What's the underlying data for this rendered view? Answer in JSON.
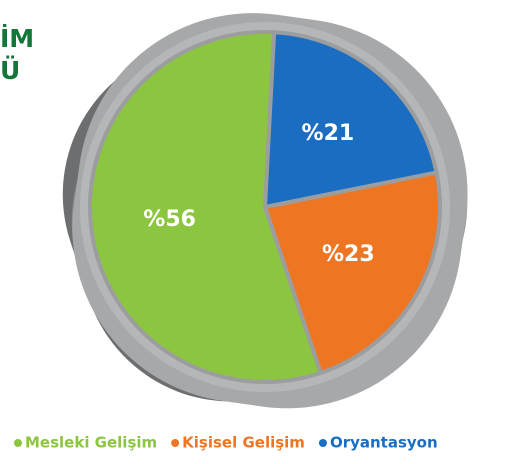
{
  "chart_data": {
    "type": "pie",
    "title": [
      "İM",
      "Ü"
    ],
    "categories": [
      "Mesleki Gelişim",
      "Kişisel Gelişim",
      "Oryantasyon"
    ],
    "values": [
      56,
      23,
      21
    ],
    "value_labels": [
      "%56",
      "%23",
      "%21"
    ],
    "colors": [
      "#8cc53f",
      "#ee7623",
      "#1a6dc1"
    ],
    "legend": "bottom"
  }
}
